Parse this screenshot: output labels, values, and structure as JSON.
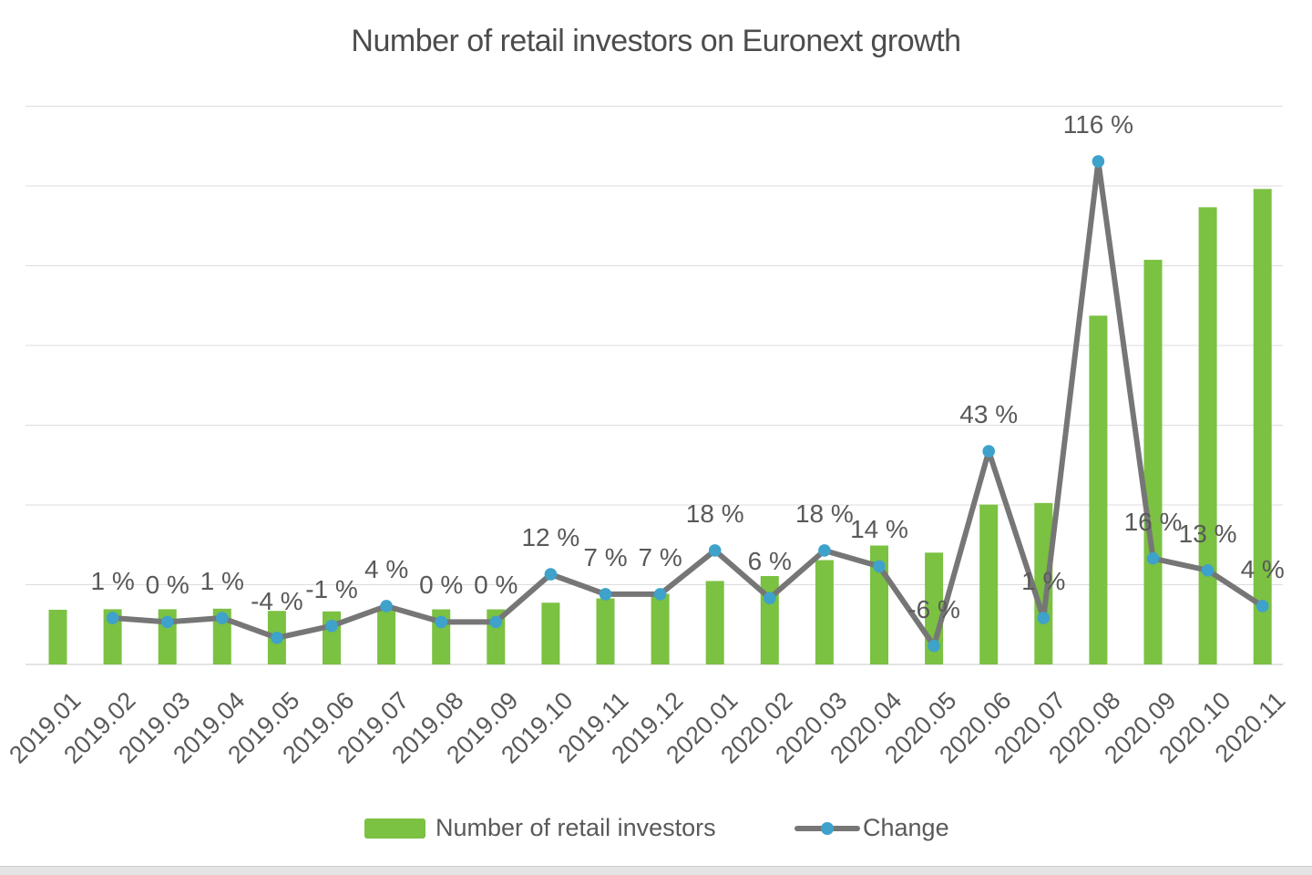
{
  "chart_data": {
    "type": "bar+line",
    "title": "Number of retail investors on Euronext growth",
    "categories": [
      "2019.01",
      "2019.02",
      "2019.03",
      "2019.04",
      "2019.05",
      "2019.06",
      "2019.07",
      "2019.08",
      "2019.09",
      "2019.10",
      "2019.11",
      "2019.12",
      "2020.01",
      "2020.02",
      "2020.03",
      "2020.04",
      "2020.05",
      "2020.06",
      "2020.07",
      "2020.08",
      "2020.09",
      "2020.10",
      "2020.11"
    ],
    "series": [
      {
        "name": "Number of retail investors",
        "type": "bar",
        "axis": "primary",
        "note": "Primary y-axis tick labels are cropped out of the left edge of the image; bar values are relative index units (2019.01 = 100) reconstructed from the Change % labels.",
        "values": [
          100,
          101,
          101,
          102,
          97.9,
          97,
          100.8,
          100.8,
          100.8,
          112.9,
          120.8,
          129.3,
          152.6,
          161.7,
          190.8,
          217.5,
          204.5,
          292.4,
          295.3,
          637.9,
          740,
          836.2,
          869.6
        ]
      },
      {
        "name": "Change",
        "type": "line",
        "axis": "secondary",
        "unit": "%",
        "values": [
          null,
          1,
          0,
          1,
          -4,
          -1,
          4,
          0,
          0,
          12,
          7,
          7,
          18,
          6,
          18,
          14,
          -6,
          43,
          1,
          116,
          16,
          13,
          4
        ],
        "labels": [
          null,
          "1 %",
          "0 %",
          "1 %",
          "-4 %",
          "-1 %",
          "4 %",
          "0 %",
          "0 %",
          "12 %",
          "7 %",
          "7 %",
          "18 %",
          "6 %",
          "18 %",
          "14 %",
          "-6 %",
          "43 %",
          "1 %",
          "116 %",
          "16 %",
          "13 %",
          "4 %"
        ]
      }
    ],
    "ylim": [
      0,
      1021
    ],
    "y2lim": [
      -10.7,
      129.9
    ],
    "gridline_count": 8,
    "grid": "horizontal only",
    "legend_position": "bottom",
    "y_axis_labels": "cropped (only right slivers of digits visible at left edge)",
    "y_axis_fragment_glyph": "0"
  },
  "colors": {
    "bar": "#7bc142",
    "line": "#767676",
    "marker": "#3ea2cb",
    "grid": "#dcdcdc",
    "axis": "#c8c8c8",
    "label_text": "#595959",
    "title_text": "#4c4c4c",
    "bottom_strip": "#e4e4e4"
  }
}
